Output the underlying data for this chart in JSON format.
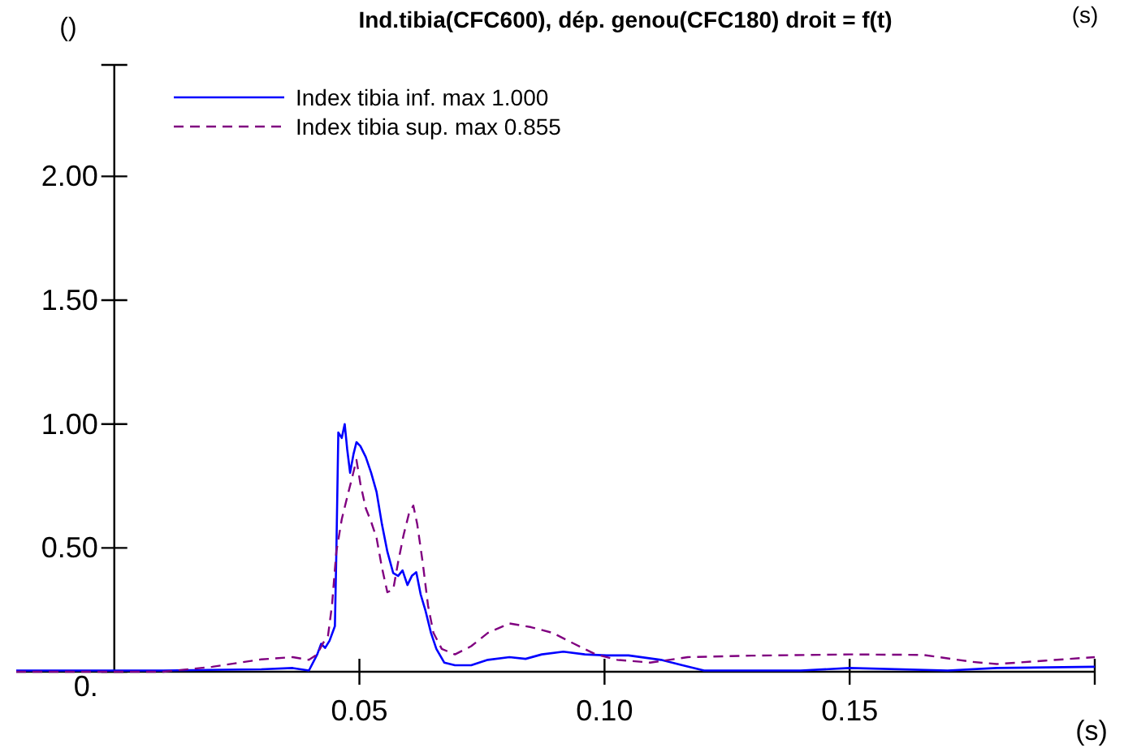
{
  "chart_data": {
    "type": "line",
    "title": "Ind.tibia(CFC600), dép. genou(CFC180) droit = f(t)",
    "ylabel": "()",
    "xlabel": "(s)",
    "annotations": [
      "(s)"
    ],
    "xlim": [
      -0.02,
      0.2
    ],
    "xticks": [
      {
        "value": 0.05,
        "label": "0.05"
      },
      {
        "value": 0.1,
        "label": "0.10"
      },
      {
        "value": 0.15,
        "label": "0.15"
      },
      {
        "value": 0.2,
        "label": null
      }
    ],
    "ylim": [
      0,
      2.45
    ],
    "yticks": [
      {
        "value": 0,
        "label": "0."
      },
      {
        "value": 0.5,
        "label": "0.50"
      },
      {
        "value": 1,
        "label": "1.00"
      },
      {
        "value": 1.5,
        "label": "1.50"
      },
      {
        "value": 2,
        "label": "2.00"
      },
      {
        "value": 2.45,
        "label": null
      }
    ],
    "grid": false,
    "legend": "top left",
    "series": [
      {
        "name": "Index tibia inf. max 1.000",
        "color": "#0000ff",
        "line_style": "solid",
        "x": [
          -0.02,
          0.01,
          0.03,
          0.0364,
          0.0397,
          0.0414,
          0.0422,
          0.043,
          0.0439,
          0.045,
          0.0453,
          0.0457,
          0.0464,
          0.047,
          0.0475,
          0.0481,
          0.0488,
          0.0494,
          0.0502,
          0.0513,
          0.0524,
          0.0535,
          0.0546,
          0.0557,
          0.0569,
          0.0579,
          0.0588,
          0.0598,
          0.0607,
          0.0616,
          0.0625,
          0.0635,
          0.0646,
          0.0657,
          0.0673,
          0.0695,
          0.0728,
          0.0762,
          0.0806,
          0.0839,
          0.0872,
          0.0916,
          0.096,
          0.1004,
          0.1049,
          0.1115,
          0.1159,
          0.1203,
          0.125,
          0.14,
          0.15,
          0.17,
          0.18,
          0.2
        ],
        "values": [
          0.005,
          0.005,
          0.01,
          0.015,
          0.005,
          0.07,
          0.113,
          0.096,
          0.125,
          0.184,
          0.485,
          0.966,
          0.944,
          1.0,
          0.9,
          0.803,
          0.879,
          0.927,
          0.911,
          0.867,
          0.803,
          0.726,
          0.595,
          0.485,
          0.398,
          0.387,
          0.409,
          0.35,
          0.387,
          0.402,
          0.312,
          0.245,
          0.157,
          0.092,
          0.037,
          0.026,
          0.026,
          0.048,
          0.059,
          0.052,
          0.07,
          0.081,
          0.07,
          0.066,
          0.066,
          0.048,
          0.026,
          0.005,
          0.005,
          0.005,
          0.015,
          0.005,
          0.015,
          0.02
        ]
      },
      {
        "name": "Index tibia sup. max 0.855",
        "color": "#800080",
        "line_style": "dashed",
        "x": [
          -0.02,
          0.01,
          0.02,
          0.03,
          0.0364,
          0.0397,
          0.0414,
          0.0425,
          0.0436,
          0.0444,
          0.0453,
          0.0464,
          0.0475,
          0.0486,
          0.0494,
          0.0502,
          0.0513,
          0.0524,
          0.0535,
          0.0546,
          0.0557,
          0.0569,
          0.0579,
          0.059,
          0.0601,
          0.061,
          0.0618,
          0.0629,
          0.064,
          0.0651,
          0.0668,
          0.0695,
          0.0728,
          0.0762,
          0.0806,
          0.085,
          0.0894,
          0.0938,
          0.0982,
          0.1026,
          0.1093,
          0.117,
          0.13,
          0.15,
          0.165,
          0.175,
          0.18,
          0.19,
          0.2
        ],
        "values": [
          0,
          0,
          0.02,
          0.05,
          0.059,
          0.048,
          0.07,
          0.113,
          0.146,
          0.267,
          0.485,
          0.616,
          0.704,
          0.791,
          0.855,
          0.759,
          0.66,
          0.605,
          0.54,
          0.42,
          0.321,
          0.332,
          0.443,
          0.551,
          0.638,
          0.671,
          0.595,
          0.443,
          0.267,
          0.157,
          0.092,
          0.07,
          0.103,
          0.157,
          0.195,
          0.18,
          0.157,
          0.113,
          0.07,
          0.048,
          0.037,
          0.059,
          0.065,
          0.07,
          0.068,
          0.04,
          0.031,
          0.045,
          0.059
        ]
      }
    ]
  }
}
